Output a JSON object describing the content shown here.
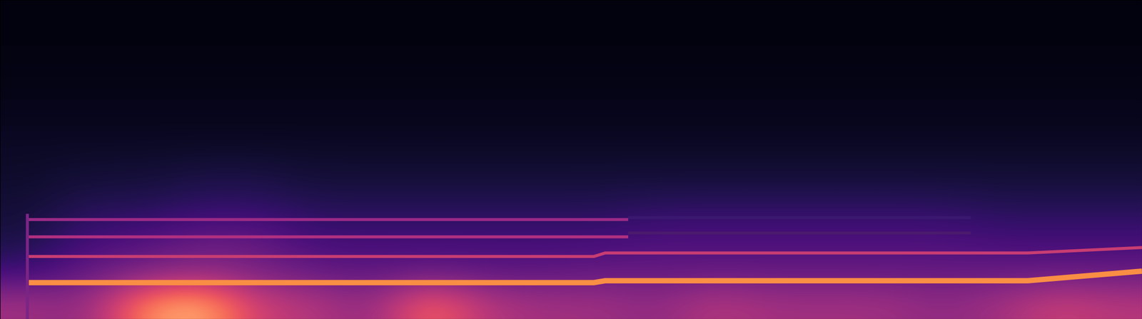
{
  "chart_data": {
    "type": "heatmap",
    "xlim": [
      0,
      100
    ],
    "ylim": [
      0,
      100
    ],
    "tick_labels": false,
    "grid": false,
    "clim": [
      0,
      1
    ],
    "cells": [
      [
        0.45,
        0.4,
        0.75,
        0.85,
        0.55,
        0.5,
        0.4,
        0.7,
        0.5,
        0.45,
        0.45,
        0.4,
        0.5,
        0.45,
        0.45,
        0.45,
        0.4,
        0.45,
        0.55,
        0.5
      ],
      [
        0.2,
        0.3,
        0.35,
        0.4,
        0.35,
        0.3,
        0.28,
        0.3,
        0.28,
        0.28,
        0.3,
        0.3,
        0.3,
        0.3,
        0.3,
        0.3,
        0.3,
        0.3,
        0.3,
        0.3
      ],
      [
        0.12,
        0.22,
        0.25,
        0.3,
        0.3,
        0.22,
        0.22,
        0.22,
        0.22,
        0.22,
        0.22,
        0.24,
        0.24,
        0.24,
        0.24,
        0.24,
        0.24,
        0.22,
        0.22,
        0.22
      ],
      [
        0.1,
        0.15,
        0.15,
        0.18,
        0.18,
        0.15,
        0.15,
        0.15,
        0.15,
        0.15,
        0.15,
        0.17,
        0.17,
        0.17,
        0.17,
        0.17,
        0.17,
        0.15,
        0.15,
        0.15
      ],
      [
        0.08,
        0.1,
        0.1,
        0.12,
        0.12,
        0.1,
        0.1,
        0.1,
        0.1,
        0.1,
        0.1,
        0.1,
        0.1,
        0.1,
        0.1,
        0.1,
        0.1,
        0.1,
        0.1,
        0.1
      ],
      [
        0.07,
        0.07,
        0.07,
        0.07,
        0.07,
        0.07,
        0.07,
        0.07,
        0.07,
        0.07,
        0.07,
        0.07,
        0.07,
        0.07,
        0.07,
        0.07,
        0.07,
        0.07,
        0.07,
        0.07
      ],
      [
        0.05,
        0.05,
        0.05,
        0.05,
        0.05,
        0.05,
        0.05,
        0.05,
        0.05,
        0.05,
        0.05,
        0.05,
        0.05,
        0.05,
        0.05,
        0.05,
        0.05,
        0.05,
        0.05,
        0.05
      ],
      [
        0.04,
        0.04,
        0.04,
        0.04,
        0.04,
        0.04,
        0.04,
        0.04,
        0.04,
        0.04,
        0.04,
        0.04,
        0.04,
        0.04,
        0.04,
        0.04,
        0.04,
        0.04,
        0.04,
        0.04
      ],
      [
        0.03,
        0.03,
        0.03,
        0.03,
        0.03,
        0.03,
        0.03,
        0.03,
        0.03,
        0.03,
        0.03,
        0.03,
        0.03,
        0.03,
        0.03,
        0.03,
        0.03,
        0.03,
        0.03,
        0.03
      ],
      [
        0.03,
        0.03,
        0.03,
        0.03,
        0.03,
        0.03,
        0.03,
        0.03,
        0.03,
        0.03,
        0.03,
        0.03,
        0.03,
        0.03,
        0.03,
        0.03,
        0.03,
        0.03,
        0.03,
        0.03
      ]
    ],
    "series": [
      {
        "color": "#f98e44",
        "x": [
          2.4,
          52,
          53,
          90,
          100
        ],
        "values": [
          11.4,
          11.4,
          12.0,
          12.0,
          15.0
        ]
      },
      {
        "color": "#c83d72",
        "x": [
          2.4,
          52,
          53,
          90,
          100
        ],
        "values": [
          19.6,
          19.6,
          20.7,
          20.7,
          22.4
        ]
      },
      {
        "color": "#b02f80",
        "x": [
          2.4,
          55
        ],
        "values": [
          25.8,
          25.8
        ]
      },
      {
        "color": "#4a1a6e",
        "x": [
          55,
          85
        ],
        "values": [
          26.9,
          26.9
        ]
      },
      {
        "color": "#9a2a86",
        "x": [
          2.4,
          55
        ],
        "values": [
          31.1,
          31.1
        ]
      },
      {
        "color": "#3b1870",
        "x": [
          55,
          85
        ],
        "values": [
          31.8,
          31.8
        ]
      },
      {
        "color": "#7a2585",
        "x": [
          2.4,
          2.4
        ],
        "values": [
          0,
          33
        ]
      }
    ]
  }
}
